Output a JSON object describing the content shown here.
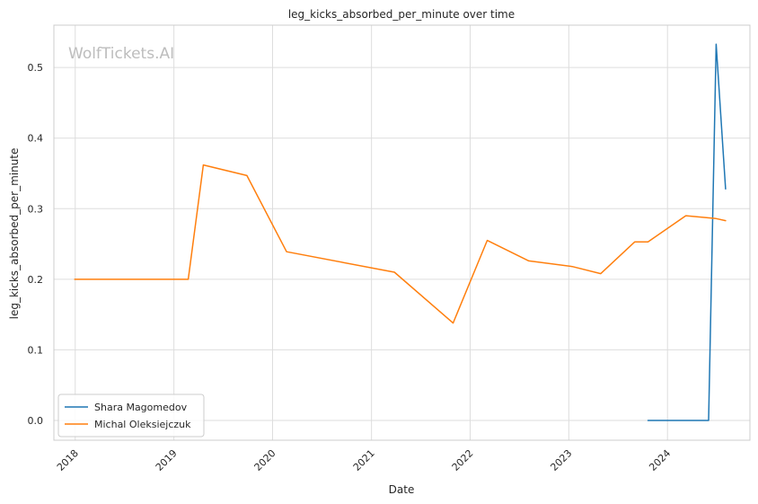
{
  "chart_data": {
    "type": "line",
    "title": "leg_kicks_absorbed_per_minute over time",
    "xlabel": "Date",
    "ylabel": "leg_kicks_absorbed_per_minute",
    "watermark": "WolfTickets.AI",
    "x_ticks": [
      "2018",
      "2019",
      "2020",
      "2021",
      "2022",
      "2023",
      "2024"
    ],
    "y_ticks": [
      "0.0",
      "0.1",
      "0.2",
      "0.3",
      "0.4",
      "0.5"
    ],
    "xlim": [
      "2017-10-14",
      "2024-11-01"
    ],
    "ylim": [
      -0.028,
      0.56
    ],
    "grid": true,
    "legend_position": "lower-left",
    "series": [
      {
        "name": "Shara Magomedov",
        "color": "#1f77b4",
        "points": [
          [
            "2023-10-21",
            0.0
          ],
          [
            "2024-06-01",
            0.0
          ],
          [
            "2024-06-29",
            0.533
          ],
          [
            "2024-08-03",
            0.328
          ]
        ]
      },
      {
        "name": "Michal Oleksiejczuk",
        "color": "#ff7f0e",
        "points": [
          [
            "2017-12-30",
            0.2
          ],
          [
            "2019-02-23",
            0.2
          ],
          [
            "2019-04-20",
            0.362
          ],
          [
            "2019-09-28",
            0.347
          ],
          [
            "2020-02-22",
            0.239
          ],
          [
            "2021-03-27",
            0.21
          ],
          [
            "2021-10-30",
            0.138
          ],
          [
            "2022-03-05",
            0.255
          ],
          [
            "2022-08-06",
            0.226
          ],
          [
            "2023-01-14",
            0.218
          ],
          [
            "2023-04-29",
            0.208
          ],
          [
            "2023-09-02",
            0.253
          ],
          [
            "2023-10-21",
            0.253
          ],
          [
            "2024-03-09",
            0.29
          ],
          [
            "2024-06-29",
            0.286
          ],
          [
            "2024-08-03",
            0.283
          ]
        ]
      }
    ]
  }
}
